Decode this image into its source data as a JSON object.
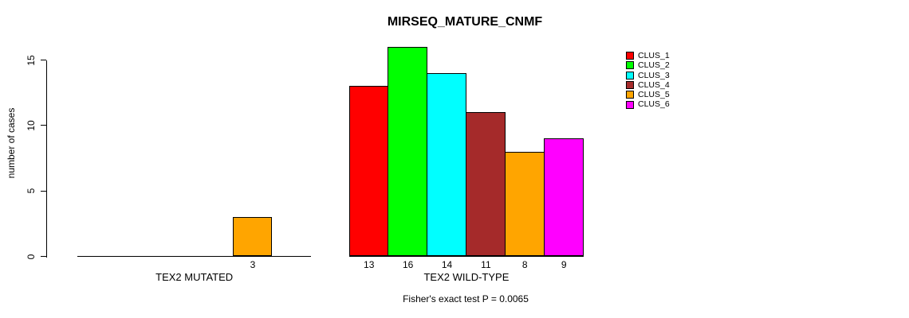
{
  "chart_data": {
    "type": "bar",
    "title": "MIRSEQ_MATURE_CNMF",
    "ylabel": "number of cases",
    "categories": [
      "TEX2 MUTATED",
      "TEX2 WILD-TYPE"
    ],
    "series": [
      {
        "name": "CLUS_1",
        "color": "#FF0000",
        "values": [
          0,
          13
        ]
      },
      {
        "name": "CLUS_2",
        "color": "#00FF00",
        "values": [
          0,
          16
        ]
      },
      {
        "name": "CLUS_3",
        "color": "#00FFFF",
        "values": [
          0,
          14
        ]
      },
      {
        "name": "CLUS_4",
        "color": "#A52A2A",
        "values": [
          0,
          11
        ]
      },
      {
        "name": "CLUS_5",
        "color": "#FFA500",
        "values": [
          3,
          8
        ]
      },
      {
        "name": "CLUS_6",
        "color": "#FF00FF",
        "values": [
          0,
          9
        ]
      }
    ],
    "yticks": [
      0,
      5,
      10,
      15
    ],
    "ylim": [
      0,
      16.5
    ],
    "grid": false,
    "legend_position": "top-right",
    "show_value_labels": true,
    "footnote": "Fisher's exact test P = 0.0065"
  }
}
